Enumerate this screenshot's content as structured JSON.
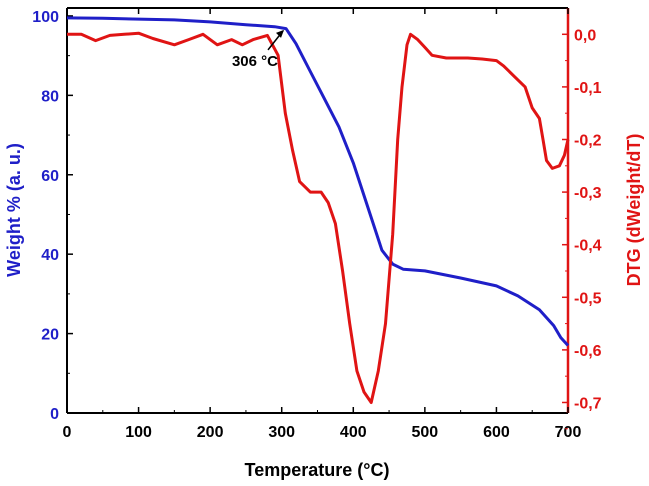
{
  "chart_data": {
    "type": "line",
    "title": "",
    "xlabel": "Temperature (°C)",
    "ylabel": "Weight % (a. u.)",
    "y2label": "DTG (dWeight/dT)",
    "xlim": [
      0,
      700
    ],
    "ylim": [
      0,
      102
    ],
    "y2lim": [
      -0.72,
      0.05
    ],
    "x_ticks": [
      0,
      100,
      200,
      300,
      400,
      500,
      600,
      700
    ],
    "x_tick_labels": [
      "0",
      "100",
      "200",
      "300",
      "400",
      "500",
      "600",
      "700"
    ],
    "y_ticks": [
      0,
      20,
      40,
      60,
      80,
      100
    ],
    "y_tick_labels": [
      "0",
      "20",
      "40",
      "60",
      "80",
      "100"
    ],
    "y2_ticks": [
      0.0,
      -0.1,
      -0.2,
      -0.3,
      -0.4,
      -0.5,
      -0.6,
      -0.7
    ],
    "y2_tick_labels": [
      "0,0",
      "-0,1",
      "-0,2",
      "-0,3",
      "-0,4",
      "-0,5",
      "-0,6",
      "-0,7"
    ],
    "grid": false,
    "colors": {
      "weight": "#1f1fc8",
      "dtg": "#e01414",
      "frame": "#000000"
    },
    "annotation": {
      "text": "306 °C",
      "x": 306,
      "y": 97
    },
    "series": [
      {
        "axis": "left",
        "color": "#1f1fc8",
        "points": [
          [
            0,
            99.5
          ],
          [
            50,
            99.4
          ],
          [
            100,
            99.2
          ],
          [
            150,
            99
          ],
          [
            200,
            98.5
          ],
          [
            250,
            97.8
          ],
          [
            290,
            97.3
          ],
          [
            306,
            96.8
          ],
          [
            320,
            93
          ],
          [
            340,
            86
          ],
          [
            360,
            79
          ],
          [
            380,
            72
          ],
          [
            400,
            63
          ],
          [
            420,
            52
          ],
          [
            440,
            41
          ],
          [
            455,
            37.5
          ],
          [
            470,
            36.2
          ],
          [
            500,
            35.8
          ],
          [
            550,
            34
          ],
          [
            600,
            32
          ],
          [
            630,
            29.5
          ],
          [
            660,
            26
          ],
          [
            680,
            22
          ],
          [
            690,
            19
          ],
          [
            700,
            17
          ]
        ]
      },
      {
        "axis": "right",
        "color": "#e01414",
        "points": [
          [
            0,
            0.0
          ],
          [
            20,
            0.0
          ],
          [
            40,
            -0.012
          ],
          [
            60,
            -0.002
          ],
          [
            80,
            0.0
          ],
          [
            100,
            0.002
          ],
          [
            120,
            -0.008
          ],
          [
            150,
            -0.02
          ],
          [
            170,
            -0.01
          ],
          [
            190,
            0.0
          ],
          [
            210,
            -0.02
          ],
          [
            230,
            -0.01
          ],
          [
            245,
            -0.02
          ],
          [
            260,
            -0.01
          ],
          [
            280,
            -0.002
          ],
          [
            295,
            -0.04
          ],
          [
            305,
            -0.15
          ],
          [
            315,
            -0.22
          ],
          [
            325,
            -0.28
          ],
          [
            340,
            -0.3
          ],
          [
            355,
            -0.3
          ],
          [
            365,
            -0.32
          ],
          [
            375,
            -0.36
          ],
          [
            385,
            -0.45
          ],
          [
            395,
            -0.55
          ],
          [
            405,
            -0.64
          ],
          [
            415,
            -0.68
          ],
          [
            425,
            -0.7
          ],
          [
            435,
            -0.64
          ],
          [
            445,
            -0.55
          ],
          [
            455,
            -0.38
          ],
          [
            462,
            -0.2
          ],
          [
            468,
            -0.1
          ],
          [
            475,
            -0.02
          ],
          [
            480,
            0.0
          ],
          [
            490,
            -0.01
          ],
          [
            500,
            -0.025
          ],
          [
            510,
            -0.04
          ],
          [
            530,
            -0.045
          ],
          [
            560,
            -0.045
          ],
          [
            580,
            -0.047
          ],
          [
            600,
            -0.05
          ],
          [
            610,
            -0.06
          ],
          [
            625,
            -0.08
          ],
          [
            640,
            -0.1
          ],
          [
            650,
            -0.14
          ],
          [
            660,
            -0.16
          ],
          [
            665,
            -0.2
          ],
          [
            670,
            -0.24
          ],
          [
            678,
            -0.255
          ],
          [
            688,
            -0.25
          ],
          [
            695,
            -0.23
          ],
          [
            700,
            -0.2
          ]
        ]
      }
    ]
  }
}
